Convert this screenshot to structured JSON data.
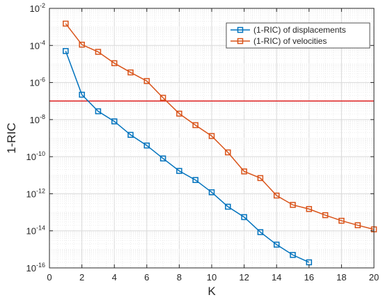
{
  "chart_data": {
    "type": "line",
    "title": "",
    "xlabel": "K",
    "ylabel": "1-RIC",
    "xlim": [
      0,
      20
    ],
    "ylim": [
      1e-16,
      0.01
    ],
    "yscale": "log",
    "grid": true,
    "minor_grid": true,
    "legend_position": "top-right",
    "x_ticks": [
      0,
      2,
      4,
      6,
      8,
      10,
      12,
      14,
      16,
      18,
      20
    ],
    "y_tick_labels": [
      {
        "mantissa": "10",
        "exponent": "-16",
        "value": 1e-16
      },
      {
        "mantissa": "10",
        "exponent": "-14",
        "value": 1e-14
      },
      {
        "mantissa": "10",
        "exponent": "-12",
        "value": 1e-12
      },
      {
        "mantissa": "10",
        "exponent": "-10",
        "value": 1e-10
      },
      {
        "mantissa": "10",
        "exponent": "-8",
        "value": 1e-08
      },
      {
        "mantissa": "10",
        "exponent": "-6",
        "value": 1e-06
      },
      {
        "mantissa": "10",
        "exponent": "-4",
        "value": 0.0001
      },
      {
        "mantissa": "10",
        "exponent": "-2",
        "value": 0.01
      }
    ],
    "series": [
      {
        "name": "(1-RIC) of displacements",
        "color": "#0072bd",
        "marker": "square",
        "x": [
          1,
          2,
          3,
          4,
          5,
          6,
          7,
          8,
          9,
          10,
          11,
          12,
          13,
          14,
          15,
          16
        ],
        "y": [
          5e-05,
          2.2e-07,
          2.8e-08,
          8e-09,
          1.5e-09,
          4e-10,
          8e-11,
          1.7e-11,
          5.5e-12,
          1.2e-12,
          2e-13,
          5.5e-14,
          8.5e-15,
          1.8e-15,
          5e-16,
          2e-16
        ]
      },
      {
        "name": "(1-RIC) of velocities",
        "color": "#d95319",
        "marker": "square",
        "x": [
          1,
          2,
          3,
          4,
          5,
          6,
          7,
          8,
          9,
          10,
          11,
          12,
          13,
          14,
          15,
          16,
          17,
          18,
          19,
          20
        ],
        "y": [
          0.0015,
          0.00011,
          4.5e-05,
          1.1e-05,
          3.5e-06,
          1.2e-06,
          1.5e-07,
          2.1e-08,
          5e-09,
          1.3e-09,
          1.7e-10,
          1.6e-11,
          7e-12,
          8e-13,
          2.5e-13,
          1.5e-13,
          7e-14,
          3.5e-14,
          2e-14,
          1.2e-14
        ]
      }
    ],
    "reference_line": {
      "y": 1e-07,
      "color": "#e03030"
    }
  }
}
